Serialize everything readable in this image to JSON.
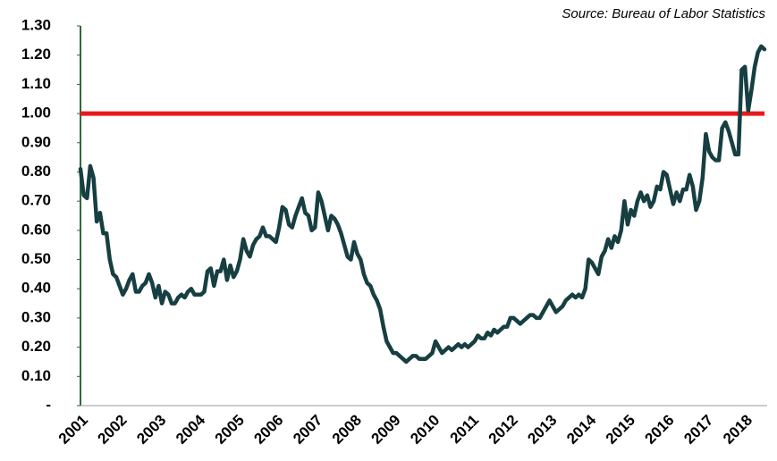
{
  "chart_data": {
    "type": "line",
    "source": "Source: Bureau of Labor Statistics",
    "categories": [
      "2001",
      null,
      null,
      null,
      null,
      null,
      null,
      null,
      null,
      null,
      null,
      null,
      "2002",
      null,
      null,
      null,
      null,
      null,
      null,
      null,
      null,
      null,
      null,
      null,
      "2003",
      null,
      null,
      null,
      null,
      null,
      null,
      null,
      null,
      null,
      null,
      null,
      "2004",
      null,
      null,
      null,
      null,
      null,
      null,
      null,
      null,
      null,
      null,
      null,
      "2005",
      null,
      null,
      null,
      null,
      null,
      null,
      null,
      null,
      null,
      null,
      null,
      "2006",
      null,
      null,
      null,
      null,
      null,
      null,
      null,
      null,
      null,
      null,
      null,
      "2007",
      null,
      null,
      null,
      null,
      null,
      null,
      null,
      null,
      null,
      null,
      null,
      "2008",
      null,
      null,
      null,
      null,
      null,
      null,
      null,
      null,
      null,
      null,
      null,
      "2009",
      null,
      null,
      null,
      null,
      null,
      null,
      null,
      null,
      null,
      null,
      null,
      "2010",
      null,
      null,
      null,
      null,
      null,
      null,
      null,
      null,
      null,
      null,
      null,
      "2011",
      null,
      null,
      null,
      null,
      null,
      null,
      null,
      null,
      null,
      null,
      null,
      "2012",
      null,
      null,
      null,
      null,
      null,
      null,
      null,
      null,
      null,
      null,
      null,
      "2013",
      null,
      null,
      null,
      null,
      null,
      null,
      null,
      null,
      null,
      null,
      null,
      "2014",
      null,
      null,
      null,
      null,
      null,
      null,
      null,
      null,
      null,
      null,
      null,
      "2015",
      null,
      null,
      null,
      null,
      null,
      null,
      null,
      null,
      null,
      null,
      null,
      "2016",
      null,
      null,
      null,
      null,
      null,
      null,
      null,
      null,
      null,
      null,
      null,
      "2017",
      null,
      null,
      null,
      null,
      null,
      null,
      null,
      null,
      null,
      null,
      null,
      "2018",
      null,
      null,
      null,
      null,
      null,
      null
    ],
    "series": [
      {
        "color": "#173f42",
        "values": [
          0.81,
          0.72,
          0.71,
          0.82,
          0.78,
          0.63,
          0.66,
          0.59,
          0.59,
          0.5,
          0.45,
          0.44,
          0.41,
          0.38,
          0.4,
          0.43,
          0.45,
          0.39,
          0.39,
          0.41,
          0.42,
          0.45,
          0.42,
          0.37,
          0.41,
          0.35,
          0.39,
          0.38,
          0.35,
          0.35,
          0.37,
          0.38,
          0.37,
          0.39,
          0.4,
          0.38,
          0.38,
          0.38,
          0.39,
          0.46,
          0.47,
          0.41,
          0.46,
          0.46,
          0.5,
          0.43,
          0.48,
          0.44,
          0.46,
          0.5,
          0.57,
          0.53,
          0.51,
          0.55,
          0.57,
          0.58,
          0.61,
          0.58,
          0.58,
          0.57,
          0.56,
          0.61,
          0.68,
          0.67,
          0.62,
          0.61,
          0.65,
          0.68,
          0.71,
          0.66,
          0.65,
          0.6,
          0.61,
          0.73,
          0.7,
          0.65,
          0.6,
          0.65,
          0.64,
          0.62,
          0.59,
          0.55,
          0.51,
          0.5,
          0.56,
          0.52,
          0.5,
          0.45,
          0.42,
          0.41,
          0.38,
          0.36,
          0.33,
          0.27,
          0.22,
          0.2,
          0.18,
          0.18,
          0.17,
          0.16,
          0.15,
          0.16,
          0.17,
          0.17,
          0.16,
          0.16,
          0.16,
          0.17,
          0.18,
          0.22,
          0.2,
          0.18,
          0.19,
          0.2,
          0.19,
          0.2,
          0.21,
          0.2,
          0.21,
          0.2,
          0.21,
          0.22,
          0.24,
          0.23,
          0.23,
          0.25,
          0.24,
          0.26,
          0.25,
          0.26,
          0.27,
          0.27,
          0.3,
          0.3,
          0.29,
          0.28,
          0.29,
          0.3,
          0.31,
          0.31,
          0.3,
          0.3,
          0.32,
          0.34,
          0.36,
          0.34,
          0.32,
          0.33,
          0.34,
          0.36,
          0.37,
          0.38,
          0.37,
          0.38,
          0.37,
          0.4,
          0.5,
          0.49,
          0.47,
          0.45,
          0.51,
          0.53,
          0.57,
          0.54,
          0.58,
          0.56,
          0.6,
          0.7,
          0.62,
          0.67,
          0.65,
          0.7,
          0.73,
          0.7,
          0.72,
          0.68,
          0.7,
          0.75,
          0.74,
          0.8,
          0.79,
          0.74,
          0.69,
          0.73,
          0.7,
          0.74,
          0.74,
          0.79,
          0.75,
          0.67,
          0.7,
          0.78,
          0.93,
          0.87,
          0.85,
          0.84,
          0.84,
          0.95,
          0.97,
          0.94,
          0.9,
          0.86,
          0.86,
          1.15,
          1.16,
          1.01,
          1.08,
          1.16,
          1.21,
          1.23,
          1.22
        ]
      }
    ],
    "reference_line": {
      "value": 1,
      "color": "#e81a1a"
    },
    "ylim": [
      0,
      1.3
    ],
    "yticks": [
      {
        "value": 0,
        "label": "-"
      },
      {
        "value": 0.1,
        "label": "0.10"
      },
      {
        "value": 0.2,
        "label": "0.20"
      },
      {
        "value": 0.3,
        "label": "0.30"
      },
      {
        "value": 0.4,
        "label": "0.40"
      },
      {
        "value": 0.5,
        "label": "0.50"
      },
      {
        "value": 0.6,
        "label": "0.60"
      },
      {
        "value": 0.7,
        "label": "0.70"
      },
      {
        "value": 0.8,
        "label": "0.80"
      },
      {
        "value": 0.9,
        "label": "0.90"
      },
      {
        "value": 1,
        "label": "1.00"
      },
      {
        "value": 1.1,
        "label": "1.10"
      },
      {
        "value": 1.2,
        "label": "1.20"
      },
      {
        "value": 1.3,
        "label": "1.30"
      }
    ],
    "grid": false
  }
}
